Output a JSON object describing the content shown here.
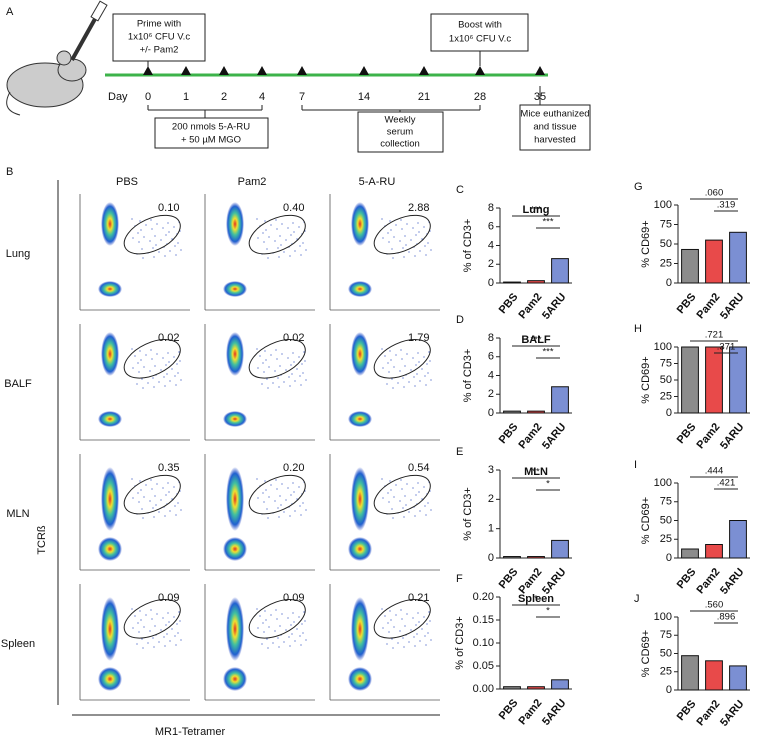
{
  "panels": {
    "a": "A",
    "b": "B"
  },
  "timeline": {
    "day_label": "Day",
    "days": [
      0,
      1,
      2,
      4,
      7,
      14,
      21,
      28,
      35
    ],
    "prime": [
      "Prime with",
      "1x10⁶ CFU V.c",
      "+/- Pam2"
    ],
    "boost": [
      "Boost with",
      "1x10⁶ CFU V.c"
    ],
    "treatment": [
      "200 nmols 5-A-RU",
      "+ 50 µM MGO"
    ],
    "serum": [
      "Weekly",
      "serum",
      "collection"
    ],
    "harvest": [
      "Mice euthanized",
      "and tissue",
      "harvested"
    ]
  },
  "flow": {
    "columns": [
      "PBS",
      "Pam2",
      "5-A-RU"
    ],
    "rows": [
      "Lung",
      "BALF",
      "MLN",
      "Spleen"
    ],
    "gates": [
      [
        "0.10",
        "0.40",
        "2.88"
      ],
      [
        "0.02",
        "0.02",
        "1.79"
      ],
      [
        "0.35",
        "0.20",
        "0.54"
      ],
      [
        "0.09",
        "0.09",
        "0.21"
      ]
    ],
    "y_label": "TCRß",
    "x_label": "MR1-Tetramer"
  },
  "chart_data": [
    {
      "type": "bar",
      "panel": "C",
      "title": "Lung",
      "ylabel": "% of CD3+",
      "categories": [
        "PBS",
        "Pam2",
        "5ARU"
      ],
      "values": [
        0.1,
        0.25,
        2.6
      ],
      "colors": [
        "#8c8c8c",
        "#e84a4a",
        "#7b8fd3"
      ],
      "ylim": [
        0,
        8
      ],
      "yticks": [
        0,
        2,
        4,
        6,
        8
      ],
      "annotations": [
        "***",
        "***"
      ]
    },
    {
      "type": "bar",
      "panel": "D",
      "title": "BALF",
      "ylabel": "% of CD3+",
      "categories": [
        "PBS",
        "Pam2",
        "5ARU"
      ],
      "values": [
        0.2,
        0.2,
        2.8
      ],
      "colors": [
        "#8c8c8c",
        "#e84a4a",
        "#7b8fd3"
      ],
      "ylim": [
        0,
        8
      ],
      "yticks": [
        0,
        2,
        4,
        6,
        8
      ],
      "annotations": [
        "***",
        "***"
      ]
    },
    {
      "type": "bar",
      "panel": "E",
      "title": "MLN",
      "ylabel": "% of CD3+",
      "categories": [
        "PBS",
        "Pam2",
        "5ARU"
      ],
      "values": [
        0.05,
        0.05,
        0.6
      ],
      "colors": [
        "#8c8c8c",
        "#e84a4a",
        "#7b8fd3"
      ],
      "ylim": [
        0,
        3
      ],
      "yticks": [
        0,
        1,
        2,
        3
      ],
      "annotations": [
        "**",
        "*"
      ]
    },
    {
      "type": "bar",
      "panel": "F",
      "title": "Spleen",
      "ylabel": "% of CD3+",
      "categories": [
        "PBS",
        "Pam2",
        "5ARU"
      ],
      "values": [
        0.005,
        0.005,
        0.02
      ],
      "colors": [
        "#8c8c8c",
        "#e84a4a",
        "#7b8fd3"
      ],
      "ylim": [
        0,
        0.2
      ],
      "yticks": [
        {
          "value": 0,
          "label": "0.00"
        },
        {
          "value": 0.05,
          "label": "0.05"
        },
        {
          "value": 0.1,
          "label": "0.10"
        },
        {
          "value": 0.15,
          "label": "0.15"
        },
        {
          "value": 0.2,
          "label": "0.20"
        }
      ],
      "annotations": [
        "*",
        "*"
      ]
    },
    {
      "type": "bar",
      "panel": "G",
      "ylabel": "% CD69+",
      "categories": [
        "PBS",
        "Pam2",
        "5ARU"
      ],
      "values": [
        43,
        55,
        65
      ],
      "colors": [
        "#8c8c8c",
        "#e84a4a",
        "#7b8fd3"
      ],
      "ylim": [
        0,
        100
      ],
      "yticks": [
        0,
        25,
        50,
        75,
        100
      ],
      "annotations": [
        ".060",
        ".319"
      ]
    },
    {
      "type": "bar",
      "panel": "H",
      "ylabel": "% CD69+",
      "categories": [
        "PBS",
        "Pam2",
        "5ARU"
      ],
      "values": [
        100,
        100,
        100
      ],
      "colors": [
        "#8c8c8c",
        "#e84a4a",
        "#7b8fd3"
      ],
      "ylim": [
        0,
        100
      ],
      "yticks": [
        0,
        25,
        50,
        75,
        100
      ],
      "annotations": [
        ".721",
        ".371"
      ]
    },
    {
      "type": "bar",
      "panel": "I",
      "ylabel": "% CD69+",
      "categories": [
        "PBS",
        "Pam2",
        "5ARU"
      ],
      "values": [
        12,
        18,
        50
      ],
      "colors": [
        "#8c8c8c",
        "#e84a4a",
        "#7b8fd3"
      ],
      "ylim": [
        0,
        100
      ],
      "yticks": [
        0,
        25,
        50,
        75,
        100
      ],
      "annotations": [
        ".444",
        ".421"
      ]
    },
    {
      "type": "bar",
      "panel": "J",
      "ylabel": "% CD69+",
      "categories": [
        "PBS",
        "Pam2",
        "5ARU"
      ],
      "values": [
        47,
        40,
        33
      ],
      "colors": [
        "#8c8c8c",
        "#e84a4a",
        "#7b8fd3"
      ],
      "ylim": [
        0,
        100
      ],
      "yticks": [
        0,
        25,
        50,
        75,
        100
      ],
      "annotations": [
        ".560",
        ".896"
      ]
    }
  ]
}
